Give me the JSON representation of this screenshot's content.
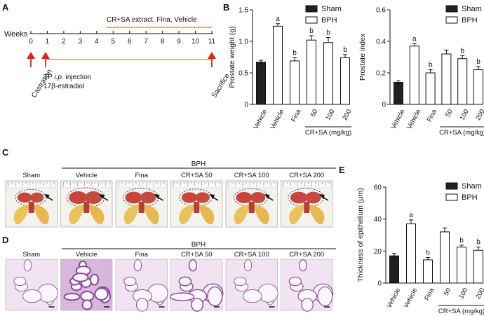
{
  "panels": {
    "A": "A",
    "B": "B",
    "C": "C",
    "D": "D",
    "E": "E"
  },
  "timeline": {
    "weeks_label": "Weeks",
    "ticks": [
      "0",
      "1",
      "2",
      "3",
      "4",
      "5",
      "6",
      "7",
      "8",
      "9",
      "10",
      "11"
    ],
    "treatment_label": "CR+SA extract, Fina, Vehicle",
    "castration": "Castration",
    "injection_line1_prefix": "TP ",
    "injection_line1_italic": "i.p.",
    "injection_line1_suffix": " injection",
    "injection_line2": "17β-estradiol",
    "sacrifice": "Sacrifice"
  },
  "groups_label": "CR+SA (mg/kg)",
  "group_ticks": [
    "Vehicle",
    "Vehicle",
    "Fina",
    "50",
    "100",
    "200"
  ],
  "legend": {
    "sham": "Sham",
    "bph": "BPH"
  },
  "photo_panels": {
    "bph_label": "BPH",
    "labels": [
      "Sham",
      "Vehicle",
      "Fina",
      "CR+SA 50",
      "CR+SA 100",
      "CR+SA 200"
    ]
  },
  "colors": {
    "sham_bar": "#231f20",
    "bph_bar": "#ffffff",
    "timeline_bar": "#d8b87a",
    "arrow_red": "#e0211d",
    "tissue_red": "#c9453c",
    "tissue_yellow": "#e9c25a",
    "histo_bg": "#ead8ea",
    "histo_line": "#7a3a8a"
  },
  "chart_data": [
    {
      "type": "bar",
      "panel": "B-left",
      "ylabel": "Prostate weight (g)",
      "ylim": [
        0,
        1.5
      ],
      "yticks": [
        "0",
        "0.5",
        "1.0",
        "1.5"
      ],
      "ytick_values": [
        0,
        0.5,
        1.0,
        1.5
      ],
      "categories": [
        "Vehicle",
        "Vehicle",
        "Fina",
        "50",
        "100",
        "200"
      ],
      "values": [
        0.67,
        1.24,
        0.69,
        1.02,
        0.98,
        0.74
      ],
      "errors": [
        0.03,
        0.04,
        0.05,
        0.07,
        0.08,
        0.05
      ],
      "group": [
        "sham",
        "bph",
        "bph",
        "bph",
        "bph",
        "bph"
      ],
      "annotations": [
        "",
        "a",
        "b",
        "b",
        "b",
        "b"
      ]
    },
    {
      "type": "bar",
      "panel": "B-right",
      "ylabel": "Prostate index",
      "ylim": [
        0,
        0.6
      ],
      "yticks": [
        "0",
        "0.2",
        "0.4",
        "0.6"
      ],
      "ytick_values": [
        0,
        0.2,
        0.4,
        0.6
      ],
      "categories": [
        "Vehicle",
        "Vehicle",
        "Fina",
        "50",
        "100",
        "200"
      ],
      "values": [
        0.14,
        0.37,
        0.2,
        0.32,
        0.29,
        0.22
      ],
      "errors": [
        0.01,
        0.015,
        0.02,
        0.025,
        0.02,
        0.02
      ],
      "group": [
        "sham",
        "bph",
        "bph",
        "bph",
        "bph",
        "bph"
      ],
      "annotations": [
        "",
        "a",
        "b",
        "",
        "b",
        "b"
      ]
    },
    {
      "type": "bar",
      "panel": "E",
      "ylabel": "Thickness of epithelium (μm)",
      "ylim": [
        0,
        60
      ],
      "yticks": [
        "0",
        "20",
        "40",
        "60"
      ],
      "ytick_values": [
        0,
        20,
        40,
        60
      ],
      "categories": [
        "Vehicle",
        "Vehicle",
        "Fina",
        "50",
        "100",
        "200"
      ],
      "values": [
        17,
        37,
        14.5,
        32,
        22.5,
        20.5
      ],
      "errors": [
        1.5,
        2.5,
        1.5,
        2.5,
        1.2,
        2
      ],
      "group": [
        "sham",
        "bph",
        "bph",
        "bph",
        "bph",
        "bph"
      ],
      "annotations": [
        "",
        "a",
        "b",
        "",
        "b",
        "b"
      ]
    }
  ]
}
